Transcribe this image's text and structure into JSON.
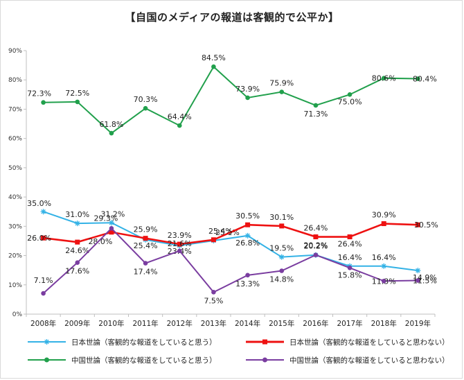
{
  "chart_data": {
    "type": "line",
    "title": "【自国のメディアの報道は客観的で公平か】",
    "xlabel": "",
    "ylabel": "",
    "categories": [
      "2008年",
      "2009年",
      "2010年",
      "2011年",
      "2012年",
      "2013年",
      "2014年",
      "2015年",
      "2016年",
      "2017年",
      "2018年",
      "2019年"
    ],
    "ylim": [
      0,
      90
    ],
    "yticks": [
      "0%",
      "10%",
      "20%",
      "30%",
      "40%",
      "50%",
      "60%",
      "70%",
      "80%",
      "90%"
    ],
    "grid": false,
    "legend_position": "bottom",
    "series": [
      {
        "name": "日本世論（客観的な報道をしていると思う）",
        "color": "#33b2e6",
        "marker": "star",
        "values": [
          35.0,
          31.0,
          31.2,
          25.4,
          23.4,
          25.1,
          26.8,
          19.5,
          20.2,
          16.4,
          16.4,
          14.9
        ],
        "labels": [
          "35.0%",
          "31.0%",
          "31.2%",
          "25.4%",
          "23.4%",
          "25.1%",
          "26.8%",
          "19.5%",
          "20.2%",
          "16.4%",
          "16.4%",
          "14.9%"
        ]
      },
      {
        "name": "日本世論（客観的な報道をしていると思わない）",
        "color": "#ee1111",
        "marker": "square",
        "values": [
          26.0,
          24.6,
          28.0,
          25.9,
          23.9,
          25.4,
          30.5,
          30.1,
          26.4,
          26.4,
          30.9,
          30.5
        ],
        "labels": [
          "26.0%",
          "24.6%",
          "28.0%",
          "25.9%",
          "23.9%",
          "25.4%",
          "30.5%",
          "30.1%",
          "26.4%",
          "26.4%",
          "30.9%",
          "30.5%"
        ]
      },
      {
        "name": "中国世論（客観的な報道をしていると思う）",
        "color": "#21a04c",
        "marker": "circle",
        "values": [
          72.3,
          72.5,
          61.8,
          70.3,
          64.4,
          84.5,
          73.9,
          75.9,
          71.3,
          75.0,
          80.6,
          80.4
        ],
        "labels": [
          "72.3%",
          "72.5%",
          "61.8%",
          "70.3%",
          "64.4%",
          "84.5%",
          "73.9%",
          "75.9%",
          "71.3%",
          "75.0%",
          "80.6%",
          "80.4%"
        ]
      },
      {
        "name": "中国世論（客観的な報道をしていると思わない）",
        "color": "#7a3da0",
        "marker": "circle",
        "values": [
          7.1,
          17.6,
          29.3,
          17.4,
          21.6,
          7.5,
          13.3,
          14.8,
          20.2,
          15.8,
          11.3,
          11.5
        ],
        "labels": [
          "7.1%",
          "17.6%",
          "29.3%",
          "17.4%",
          "21.6%",
          "7.5%",
          "13.3%",
          "14.8%",
          "20.2%",
          "15.8%",
          "11.3%",
          "11.5%"
        ]
      }
    ]
  }
}
